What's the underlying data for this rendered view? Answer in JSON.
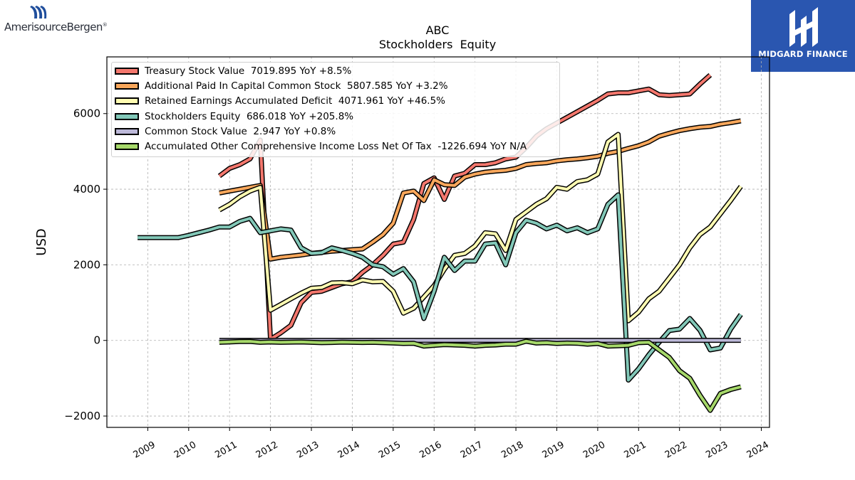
{
  "logos": {
    "left_brand": "AmerisourceBergen",
    "left_brand_mark": "®",
    "right_brand": "MIDGARD FINANCE"
  },
  "chart_data": {
    "type": "line",
    "title": "ABC",
    "subtitle": "Stockholders  Equity",
    "ylabel": "USD",
    "xlabel": "",
    "xlim": [
      2008.0,
      2024.2
    ],
    "ylim": [
      -2300,
      7500
    ],
    "yticks": [
      -2000,
      0,
      2000,
      4000,
      6000
    ],
    "ytick_labels": [
      "−2000",
      "0",
      "2000",
      "4000",
      "6000"
    ],
    "xticks": [
      2009,
      2010,
      2011,
      2012,
      2013,
      2014,
      2015,
      2016,
      2017,
      2018,
      2019,
      2020,
      2021,
      2022,
      2023,
      2024
    ],
    "grid": true,
    "legend_position": "top-left",
    "series": [
      {
        "name": "Treasury Stock Value  7019.895 YoY +8.5%",
        "color": "#f4776d",
        "points": [
          [
            2010.75,
            4350
          ],
          [
            2011.0,
            4550
          ],
          [
            2011.25,
            4650
          ],
          [
            2011.5,
            4800
          ],
          [
            2011.75,
            5300
          ],
          [
            2012.0,
            30
          ],
          [
            2012.25,
            200
          ],
          [
            2012.5,
            400
          ],
          [
            2012.75,
            1000
          ],
          [
            2013.0,
            1270
          ],
          [
            2013.25,
            1300
          ],
          [
            2013.5,
            1400
          ],
          [
            2013.75,
            1500
          ],
          [
            2014.0,
            1550
          ],
          [
            2014.25,
            1800
          ],
          [
            2014.5,
            2000
          ],
          [
            2014.75,
            2250
          ],
          [
            2015.0,
            2550
          ],
          [
            2015.25,
            2600
          ],
          [
            2015.5,
            3200
          ],
          [
            2015.75,
            4150
          ],
          [
            2016.0,
            4300
          ],
          [
            2016.25,
            3730
          ],
          [
            2016.5,
            4350
          ],
          [
            2016.75,
            4420
          ],
          [
            2017.0,
            4650
          ],
          [
            2017.25,
            4650
          ],
          [
            2017.5,
            4700
          ],
          [
            2017.75,
            4800
          ],
          [
            2018.0,
            4850
          ],
          [
            2018.25,
            5100
          ],
          [
            2018.5,
            5400
          ],
          [
            2018.75,
            5600
          ],
          [
            2019.0,
            5750
          ],
          [
            2019.25,
            5900
          ],
          [
            2019.5,
            6050
          ],
          [
            2019.75,
            6200
          ],
          [
            2020.0,
            6350
          ],
          [
            2020.25,
            6520
          ],
          [
            2020.5,
            6550
          ],
          [
            2020.75,
            6550
          ],
          [
            2021.0,
            6600
          ],
          [
            2021.25,
            6650
          ],
          [
            2021.5,
            6500
          ],
          [
            2021.75,
            6480
          ],
          [
            2022.0,
            6500
          ],
          [
            2022.25,
            6520
          ],
          [
            2022.5,
            6780
          ],
          [
            2022.75,
            7020
          ]
        ]
      },
      {
        "name": "Additional Paid In Capital Common Stock  5807.585 YoY +3.2%",
        "color": "#f9a75b",
        "points": [
          [
            2010.75,
            3900
          ],
          [
            2011.0,
            3950
          ],
          [
            2011.25,
            4000
          ],
          [
            2011.5,
            4050
          ],
          [
            2011.75,
            4100
          ],
          [
            2012.0,
            2150
          ],
          [
            2012.25,
            2200
          ],
          [
            2012.5,
            2230
          ],
          [
            2012.75,
            2260
          ],
          [
            2013.0,
            2300
          ],
          [
            2013.25,
            2330
          ],
          [
            2013.5,
            2360
          ],
          [
            2013.75,
            2380
          ],
          [
            2014.0,
            2400
          ],
          [
            2014.25,
            2420
          ],
          [
            2014.5,
            2600
          ],
          [
            2014.75,
            2800
          ],
          [
            2015.0,
            3100
          ],
          [
            2015.25,
            3900
          ],
          [
            2015.5,
            3950
          ],
          [
            2015.75,
            3700
          ],
          [
            2016.0,
            4250
          ],
          [
            2016.25,
            4120
          ],
          [
            2016.5,
            4100
          ],
          [
            2016.75,
            4320
          ],
          [
            2017.0,
            4400
          ],
          [
            2017.25,
            4450
          ],
          [
            2017.5,
            4480
          ],
          [
            2017.75,
            4500
          ],
          [
            2018.0,
            4550
          ],
          [
            2018.25,
            4650
          ],
          [
            2018.5,
            4680
          ],
          [
            2018.75,
            4700
          ],
          [
            2019.0,
            4750
          ],
          [
            2019.25,
            4780
          ],
          [
            2019.5,
            4800
          ],
          [
            2019.75,
            4830
          ],
          [
            2020.0,
            4870
          ],
          [
            2020.25,
            4950
          ],
          [
            2020.5,
            5000
          ],
          [
            2020.75,
            5080
          ],
          [
            2021.0,
            5150
          ],
          [
            2021.25,
            5250
          ],
          [
            2021.5,
            5400
          ],
          [
            2021.75,
            5480
          ],
          [
            2022.0,
            5550
          ],
          [
            2022.25,
            5600
          ],
          [
            2022.5,
            5640
          ],
          [
            2022.75,
            5660
          ],
          [
            2023.0,
            5720
          ],
          [
            2023.25,
            5760
          ],
          [
            2023.5,
            5808
          ]
        ]
      },
      {
        "name": "Retained Earnings Accumulated Deficit  4071.961 YoY +46.5%",
        "color": "#fffcb2",
        "points": [
          [
            2010.75,
            3450
          ],
          [
            2011.0,
            3600
          ],
          [
            2011.25,
            3800
          ],
          [
            2011.5,
            3950
          ],
          [
            2011.75,
            4050
          ],
          [
            2012.0,
            800
          ],
          [
            2012.25,
            950
          ],
          [
            2012.5,
            1100
          ],
          [
            2012.75,
            1250
          ],
          [
            2013.0,
            1380
          ],
          [
            2013.25,
            1400
          ],
          [
            2013.5,
            1520
          ],
          [
            2013.75,
            1530
          ],
          [
            2014.0,
            1500
          ],
          [
            2014.25,
            1600
          ],
          [
            2014.5,
            1550
          ],
          [
            2014.75,
            1560
          ],
          [
            2015.0,
            1300
          ],
          [
            2015.25,
            720
          ],
          [
            2015.5,
            850
          ],
          [
            2015.75,
            1150
          ],
          [
            2016.0,
            1450
          ],
          [
            2016.25,
            1880
          ],
          [
            2016.5,
            2250
          ],
          [
            2016.75,
            2300
          ],
          [
            2017.0,
            2500
          ],
          [
            2017.25,
            2850
          ],
          [
            2017.5,
            2820
          ],
          [
            2017.75,
            2380
          ],
          [
            2018.0,
            3200
          ],
          [
            2018.25,
            3400
          ],
          [
            2018.5,
            3600
          ],
          [
            2018.75,
            3750
          ],
          [
            2019.0,
            4050
          ],
          [
            2019.25,
            4000
          ],
          [
            2019.5,
            4200
          ],
          [
            2019.75,
            4250
          ],
          [
            2020.0,
            4400
          ],
          [
            2020.25,
            5250
          ],
          [
            2020.5,
            5450
          ],
          [
            2020.75,
            520
          ],
          [
            2021.0,
            750
          ],
          [
            2021.25,
            1100
          ],
          [
            2021.5,
            1300
          ],
          [
            2021.75,
            1650
          ],
          [
            2022.0,
            2000
          ],
          [
            2022.25,
            2450
          ],
          [
            2022.5,
            2800
          ],
          [
            2022.75,
            3000
          ],
          [
            2023.0,
            3350
          ],
          [
            2023.25,
            3700
          ],
          [
            2023.5,
            4072
          ]
        ]
      },
      {
        "name": "Stockholders Equity  686.018 YoY +205.8%",
        "color": "#82c8b8",
        "points": [
          [
            2008.75,
            2720
          ],
          [
            2009.0,
            2720
          ],
          [
            2009.25,
            2720
          ],
          [
            2009.5,
            2720
          ],
          [
            2009.75,
            2720
          ],
          [
            2010.0,
            2780
          ],
          [
            2010.25,
            2850
          ],
          [
            2010.5,
            2920
          ],
          [
            2010.75,
            3000
          ],
          [
            2011.0,
            3000
          ],
          [
            2011.25,
            3150
          ],
          [
            2011.5,
            3230
          ],
          [
            2011.75,
            2850
          ],
          [
            2012.0,
            2900
          ],
          [
            2012.25,
            2950
          ],
          [
            2012.5,
            2920
          ],
          [
            2012.75,
            2450
          ],
          [
            2013.0,
            2300
          ],
          [
            2013.25,
            2320
          ],
          [
            2013.5,
            2450
          ],
          [
            2013.75,
            2380
          ],
          [
            2014.0,
            2300
          ],
          [
            2014.25,
            2200
          ],
          [
            2014.5,
            2000
          ],
          [
            2014.75,
            1950
          ],
          [
            2015.0,
            1750
          ],
          [
            2015.25,
            1900
          ],
          [
            2015.5,
            1550
          ],
          [
            2015.75,
            580
          ],
          [
            2016.0,
            1300
          ],
          [
            2016.25,
            2200
          ],
          [
            2016.5,
            1850
          ],
          [
            2016.75,
            2100
          ],
          [
            2017.0,
            2100
          ],
          [
            2017.25,
            2550
          ],
          [
            2017.5,
            2580
          ],
          [
            2017.75,
            2000
          ],
          [
            2018.0,
            2850
          ],
          [
            2018.25,
            3180
          ],
          [
            2018.5,
            3100
          ],
          [
            2018.75,
            2950
          ],
          [
            2019.0,
            3050
          ],
          [
            2019.25,
            2900
          ],
          [
            2019.5,
            2980
          ],
          [
            2019.75,
            2850
          ],
          [
            2020.0,
            2950
          ],
          [
            2020.25,
            3600
          ],
          [
            2020.5,
            3850
          ],
          [
            2020.75,
            -1050
          ],
          [
            2021.0,
            -750
          ],
          [
            2021.25,
            -380
          ],
          [
            2021.5,
            -50
          ],
          [
            2021.75,
            260
          ],
          [
            2022.0,
            300
          ],
          [
            2022.25,
            580
          ],
          [
            2022.5,
            270
          ],
          [
            2022.75,
            -250
          ],
          [
            2023.0,
            -200
          ],
          [
            2023.25,
            300
          ],
          [
            2023.5,
            686
          ]
        ]
      },
      {
        "name": "Common Stock Value  2.947 YoY +0.8%",
        "color": "#bcb8d8",
        "points": [
          [
            2010.75,
            3
          ],
          [
            2023.5,
            3
          ]
        ]
      },
      {
        "name": "Accumulated Other Comprehensive Income Loss Net Of Tax  -1226.694 YoY N/A",
        "color": "#a6d86a",
        "points": [
          [
            2010.75,
            -50
          ],
          [
            2011.0,
            -40
          ],
          [
            2011.25,
            -30
          ],
          [
            2011.5,
            -25
          ],
          [
            2011.75,
            -50
          ],
          [
            2012.0,
            -40
          ],
          [
            2012.25,
            -50
          ],
          [
            2012.5,
            -45
          ],
          [
            2012.75,
            -40
          ],
          [
            2013.0,
            -50
          ],
          [
            2013.25,
            -60
          ],
          [
            2013.5,
            -55
          ],
          [
            2013.75,
            -45
          ],
          [
            2014.0,
            -50
          ],
          [
            2014.25,
            -55
          ],
          [
            2014.5,
            -50
          ],
          [
            2014.75,
            -60
          ],
          [
            2015.0,
            -70
          ],
          [
            2015.25,
            -80
          ],
          [
            2015.5,
            -75
          ],
          [
            2015.75,
            -150
          ],
          [
            2016.0,
            -130
          ],
          [
            2016.25,
            -110
          ],
          [
            2016.5,
            -120
          ],
          [
            2016.75,
            -130
          ],
          [
            2017.0,
            -150
          ],
          [
            2017.25,
            -130
          ],
          [
            2017.5,
            -120
          ],
          [
            2017.75,
            -100
          ],
          [
            2018.0,
            -100
          ],
          [
            2018.25,
            -20
          ],
          [
            2018.5,
            -70
          ],
          [
            2018.75,
            -60
          ],
          [
            2019.0,
            -80
          ],
          [
            2019.25,
            -70
          ],
          [
            2019.5,
            -75
          ],
          [
            2019.75,
            -100
          ],
          [
            2020.0,
            -80
          ],
          [
            2020.25,
            -150
          ],
          [
            2020.5,
            -140
          ],
          [
            2020.75,
            -130
          ],
          [
            2021.0,
            -60
          ],
          [
            2021.25,
            -50
          ],
          [
            2021.5,
            -250
          ],
          [
            2021.75,
            -450
          ],
          [
            2022.0,
            -800
          ],
          [
            2022.25,
            -1000
          ],
          [
            2022.5,
            -1450
          ],
          [
            2022.75,
            -1850
          ],
          [
            2023.0,
            -1400
          ],
          [
            2023.25,
            -1300
          ],
          [
            2023.5,
            -1227
          ]
        ]
      }
    ]
  }
}
